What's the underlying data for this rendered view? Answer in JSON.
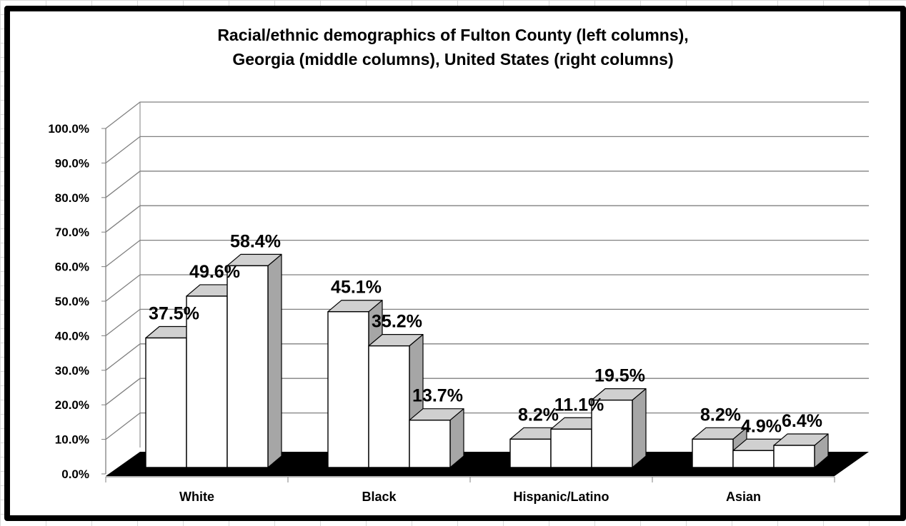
{
  "chart_data": {
    "type": "bar",
    "style": "3d-clustered-column",
    "title": "Racial/ethnic demographics of Fulton County (left columns), Georgia (middle columns), United States (right columns)",
    "title_lines": [
      "Racial/ethnic demographics of Fulton County (left columns),",
      "Georgia (middle columns), United States (right columns)"
    ],
    "xlabel": "",
    "ylabel": "",
    "categories": [
      "White",
      "Black",
      "Hispanic/Latino",
      "Asian"
    ],
    "series": [
      {
        "values": [
          37.5,
          45.1,
          8.2,
          8.2
        ],
        "labels": [
          "37.5%",
          "45.1%",
          "8.2%",
          "8.2%"
        ]
      },
      {
        "values": [
          49.6,
          35.2,
          11.1,
          4.9
        ],
        "labels": [
          "49.6%",
          "35.2%",
          "11.1%",
          "4.9%"
        ]
      },
      {
        "values": [
          58.4,
          13.7,
          19.5,
          6.4
        ],
        "labels": [
          "58.4%",
          "13.7%",
          "19.5%",
          "6.4%"
        ]
      }
    ],
    "ylim": [
      0,
      100
    ],
    "y_ticks": [
      0,
      10,
      20,
      30,
      40,
      50,
      60,
      70,
      80,
      90,
      100
    ],
    "y_tick_labels": [
      "0.0%",
      "10.0%",
      "20.0%",
      "30.0%",
      "40.0%",
      "50.0%",
      "60.0%",
      "70.0%",
      "80.0%",
      "90.0%",
      "100.0%"
    ],
    "grid": true,
    "legend": "none",
    "colors": {
      "bar_front": "#ffffff",
      "bar_side": "#a6a6a6",
      "bar_top": "#d0d0d0",
      "floor": "#000000",
      "gridline": "#808080",
      "frame": "#000000"
    }
  }
}
